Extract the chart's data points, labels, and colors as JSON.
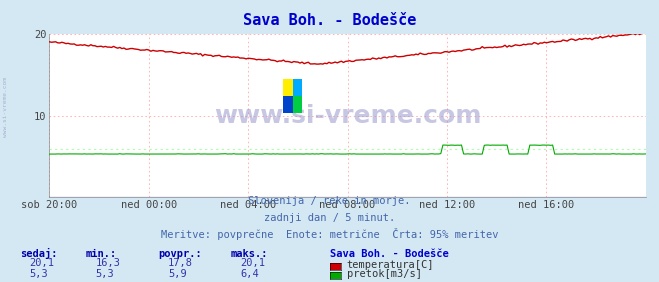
{
  "title": "Sava Boh. - Bodešče",
  "title_color": "#0000cc",
  "bg_color": "#d4e8f4",
  "plot_bg_color": "#ffffff",
  "x_ticks_labels": [
    "sob 20:00",
    "ned 00:00",
    "ned 04:00",
    "ned 08:00",
    "ned 12:00",
    "ned 16:00"
  ],
  "x_ticks_pos": [
    0,
    48,
    96,
    144,
    192,
    240
  ],
  "y_ticks": [
    10,
    20
  ],
  "grid_color": "#ffaaaa",
  "temp_color": "#cc0000",
  "temp_ref_color": "#ffaaaa",
  "flow_color": "#00aa00",
  "flow_ref_color": "#aaffaa",
  "height_color": "#0000cc",
  "watermark_color": "#9999cc",
  "info_text1": "Slovenija / reke in morje.",
  "info_text2": "zadnji dan / 5 minut.",
  "info_text3": "Meritve: povprečne  Enote: metrične  Črta: 95% meritev",
  "info_color": "#4466aa",
  "legend_title": "Sava Boh. - Bodešče",
  "legend_color": "#0000cc",
  "table_header": [
    "sedaj:",
    "min.:",
    "povpr.:",
    "maks.:"
  ],
  "table_color": "#0000aa",
  "row1": [
    "20,1",
    "16,3",
    "17,8",
    "20,1"
  ],
  "row2": [
    "5,3",
    "5,3",
    "5,9",
    "6,4"
  ],
  "leg1_label": "temperatura[C]",
  "leg2_label": "pretok[m3/s]",
  "leg1_color": "#cc0000",
  "leg2_color": "#00aa00",
  "temp_max": 20.1,
  "temp_min": 16.3,
  "temp_avg": 17.8,
  "flow_max": 6.4,
  "flow_min": 5.3,
  "flow_avg": 5.9,
  "y_scale_max": 20.0,
  "y_scale_min": 0.0
}
